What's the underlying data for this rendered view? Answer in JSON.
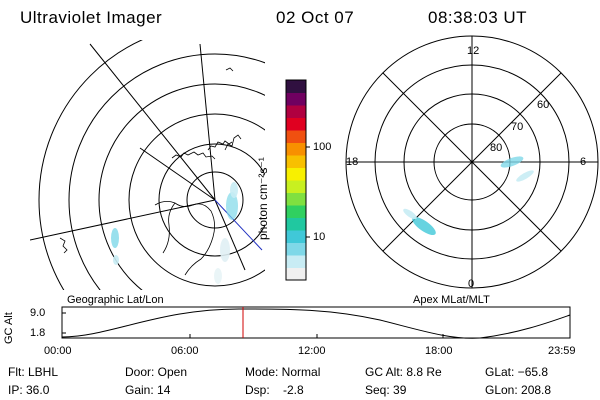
{
  "header": {
    "instrument": "Ultraviolet Imager",
    "date": "02 Oct 07",
    "time": "08:38:03 UT"
  },
  "colorbar": {
    "unit_label": "photon cm⁻²s⁻¹",
    "ticks": [
      "100",
      "10"
    ],
    "colors": [
      "#f0f0f0",
      "#c8ecf4",
      "#7fd8e8",
      "#40c8d8",
      "#20c8a0",
      "#30d060",
      "#80e040",
      "#c8f020",
      "#f8f000",
      "#f8c000",
      "#f89000",
      "#f05010",
      "#e00020",
      "#b00040",
      "#700060",
      "#301040"
    ]
  },
  "left_map": {
    "label": "Geographic Lat/Lon"
  },
  "right_map": {
    "label": "Apex MLat/MLT",
    "mlt_labels": [
      "12",
      "18",
      "6",
      "0"
    ],
    "mlat_labels": [
      "60",
      "70",
      "80"
    ]
  },
  "orbit_plot": {
    "ylabel": "GC Alt",
    "yticks": [
      "9.0",
      "1.8"
    ],
    "xticks": [
      "00:00",
      "06:00",
      "12:00",
      "18:00",
      "23:59"
    ],
    "marker_time": "08:38"
  },
  "status": {
    "flt": "Flt: LBHL",
    "ip": "IP: 36.0",
    "door": "Door: Open",
    "gain": "Gain: 14",
    "mode": "Mode: Normal",
    "dsp": "Dsp:    -2.8",
    "gc_alt": "GC Alt: 8.8 Re",
    "seq": "Seq: 39",
    "glat": "GLat: −65.8",
    "glon": "GLon: 208.8"
  }
}
